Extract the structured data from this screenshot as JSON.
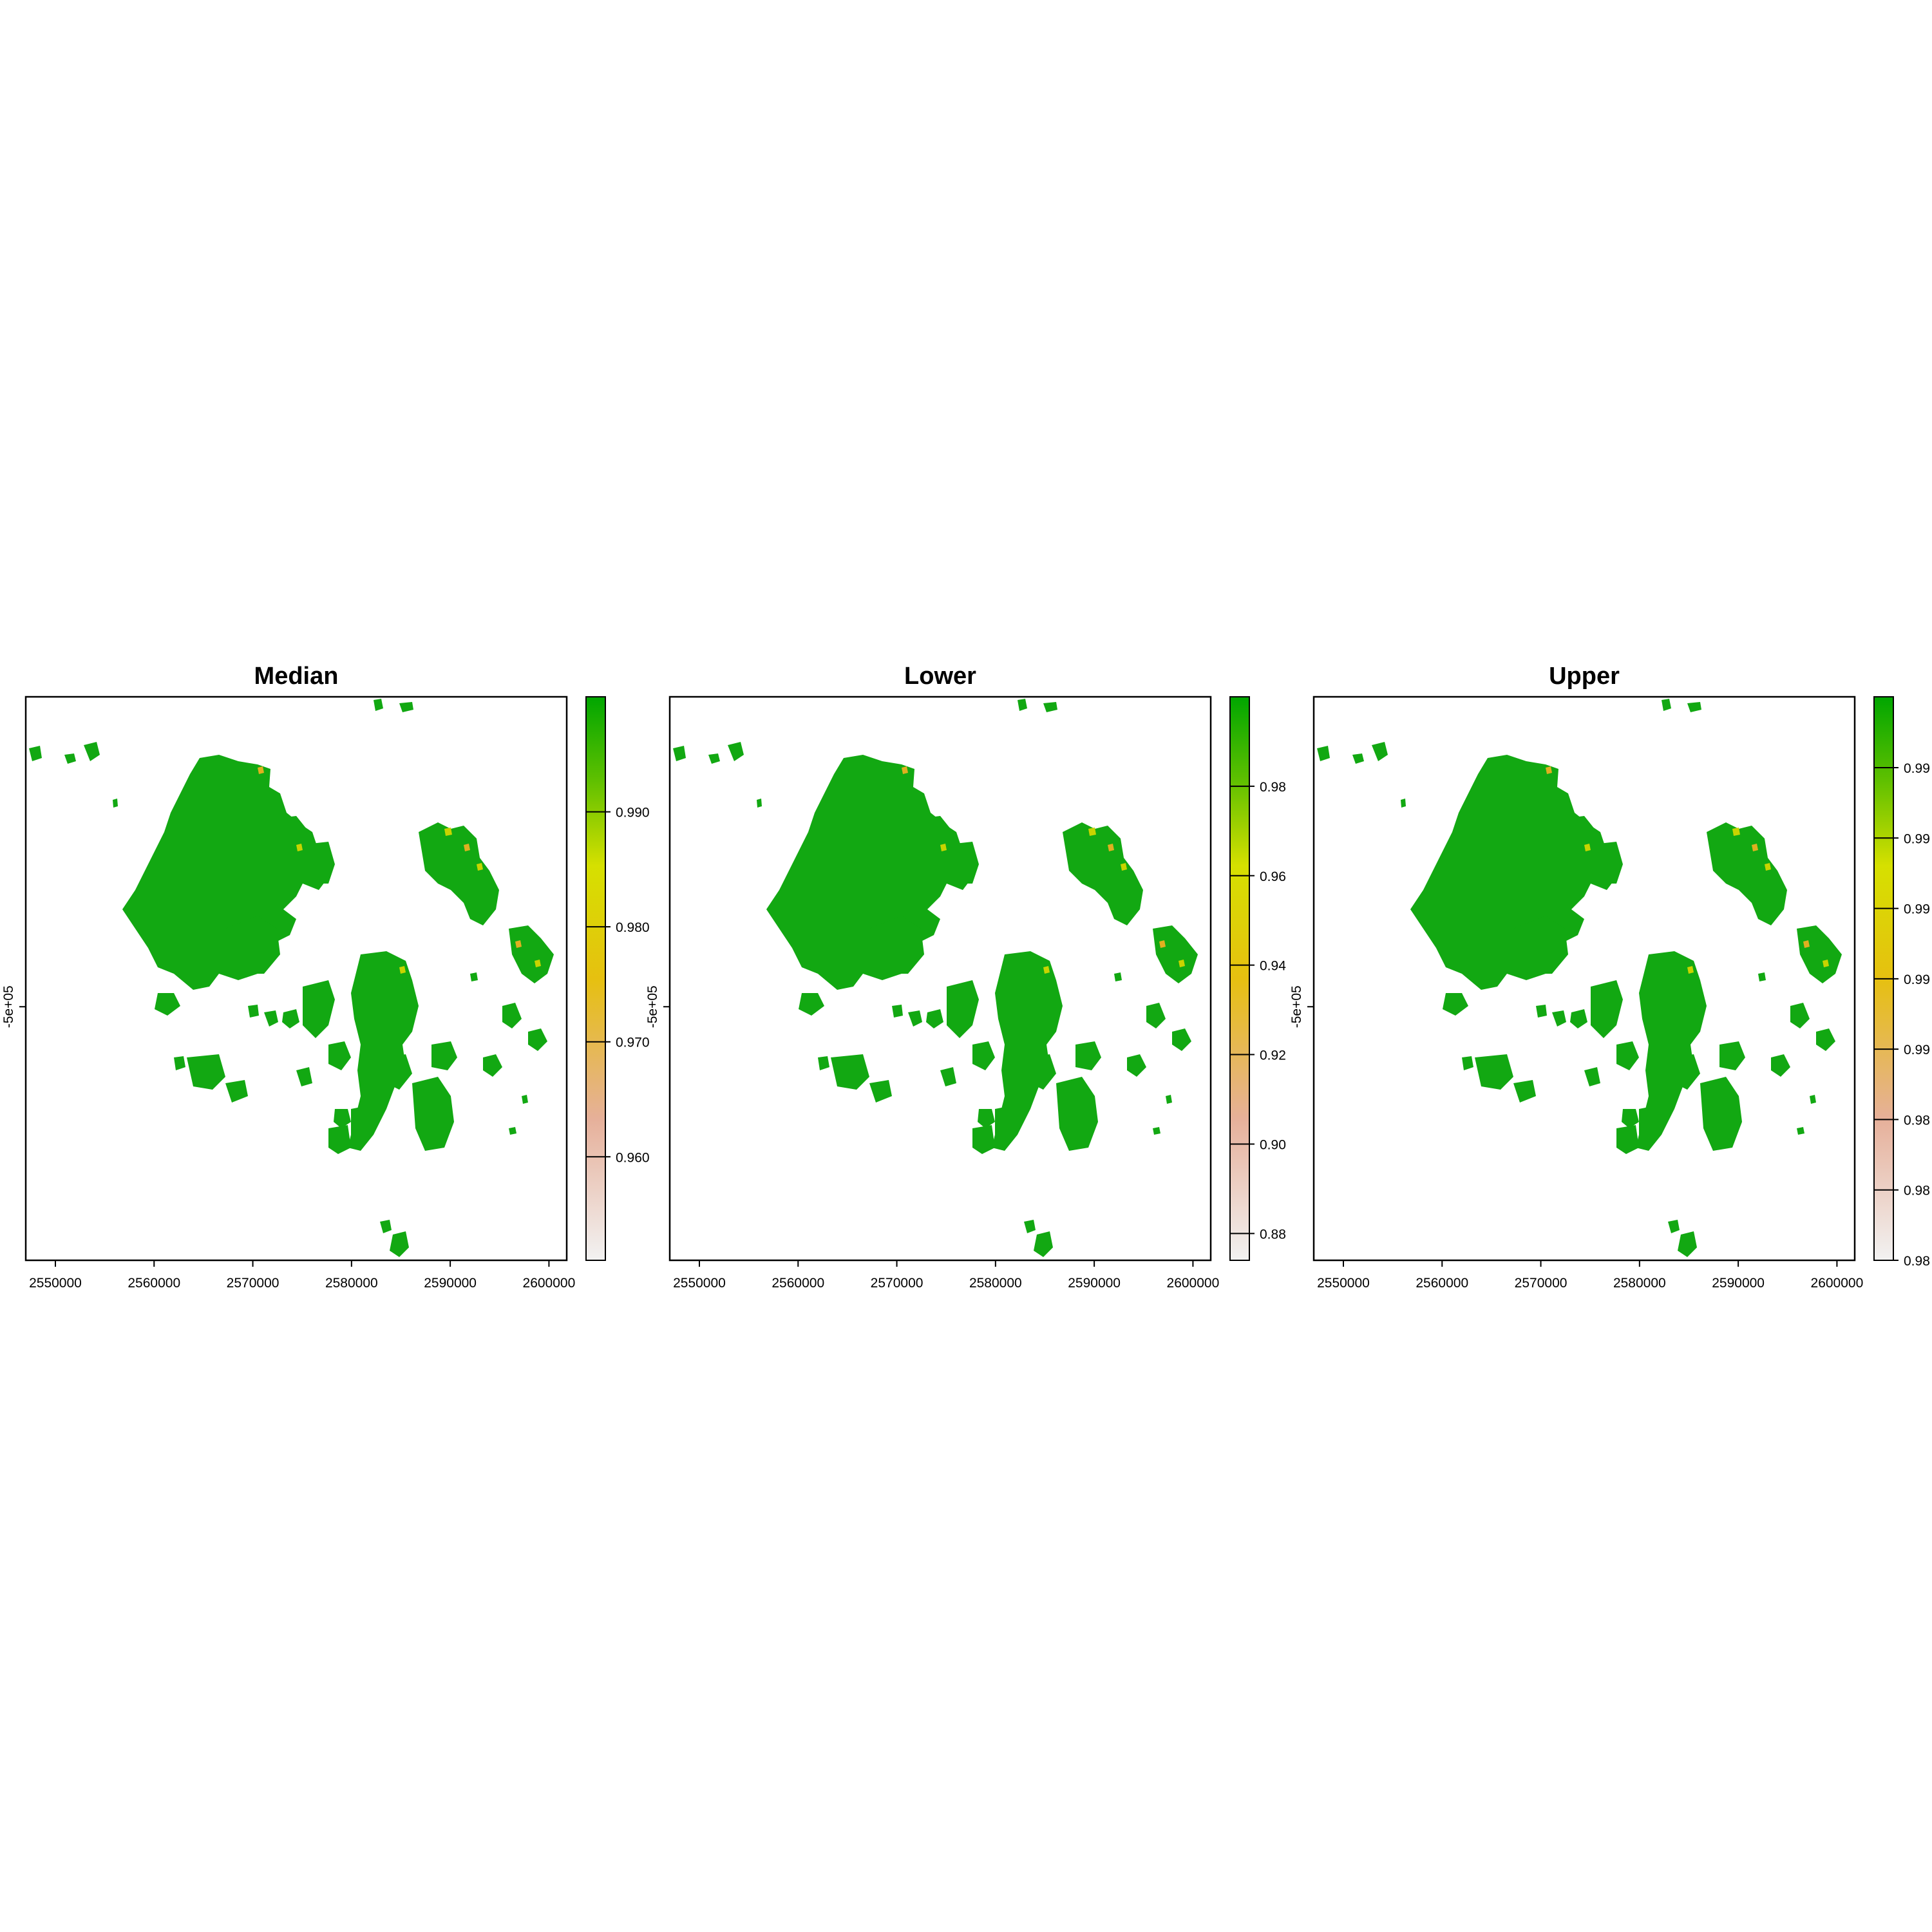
{
  "chart_data": [
    {
      "type": "heatmap",
      "title": "Median",
      "x_ticks": [
        2550000,
        2560000,
        2570000,
        2580000,
        2590000,
        2600000
      ],
      "x_tick_labels": [
        "2550000",
        "2560000",
        "2570000",
        "2580000",
        "2590000",
        "2600000"
      ],
      "xlim": [
        2547000,
        2601800
      ],
      "y_ticks": [
        -500000
      ],
      "y_tick_labels": [
        "-5e+05"
      ],
      "colorbar": {
        "range": [
          0.951,
          1.0
        ],
        "ticks": [
          0.96,
          0.97,
          0.98,
          0.99
        ],
        "tick_labels": [
          "0.960",
          "0.970",
          "0.980",
          "0.990"
        ],
        "colors": [
          "#f2f2f2",
          "#e8a07a",
          "#e6e60a",
          "#00a600"
        ]
      },
      "dominant_color": "#10a810"
    },
    {
      "type": "heatmap",
      "title": "Lower",
      "x_ticks": [
        2550000,
        2560000,
        2570000,
        2580000,
        2590000,
        2600000
      ],
      "x_tick_labels": [
        "2550000",
        "2560000",
        "2570000",
        "2580000",
        "2590000",
        "2600000"
      ],
      "xlim": [
        2547000,
        2601800
      ],
      "y_ticks": [
        -500000
      ],
      "y_tick_labels": [
        "-5e+05"
      ],
      "colorbar": {
        "range": [
          0.874,
          1.0
        ],
        "ticks": [
          0.88,
          0.9,
          0.92,
          0.94,
          0.96,
          0.98
        ],
        "tick_labels": [
          "0.88",
          "0.90",
          "0.92",
          "0.94",
          "0.96",
          "0.98"
        ],
        "colors": [
          "#f2f2f2",
          "#e8a07a",
          "#e6e60a",
          "#00a600"
        ]
      },
      "dominant_color": "#10a810"
    },
    {
      "type": "heatmap",
      "title": "Upper",
      "x_ticks": [
        2550000,
        2560000,
        2570000,
        2580000,
        2590000,
        2600000
      ],
      "x_tick_labels": [
        "2550000",
        "2560000",
        "2570000",
        "2580000",
        "2590000",
        "2600000"
      ],
      "xlim": [
        2547000,
        2601800
      ],
      "y_ticks": [
        -500000
      ],
      "y_tick_labels": [
        "-5e+05"
      ],
      "colorbar": {
        "ticks_visible": 8,
        "tick_labels": [
          "0.99",
          "0.99",
          "0.99",
          "0.99",
          "0.99",
          "0.98",
          "0.98",
          "0.98"
        ],
        "colors": [
          "#f2f2f2",
          "#e8a07a",
          "#e6e60a",
          "#00a600"
        ]
      },
      "dominant_color": "#10a810"
    }
  ]
}
